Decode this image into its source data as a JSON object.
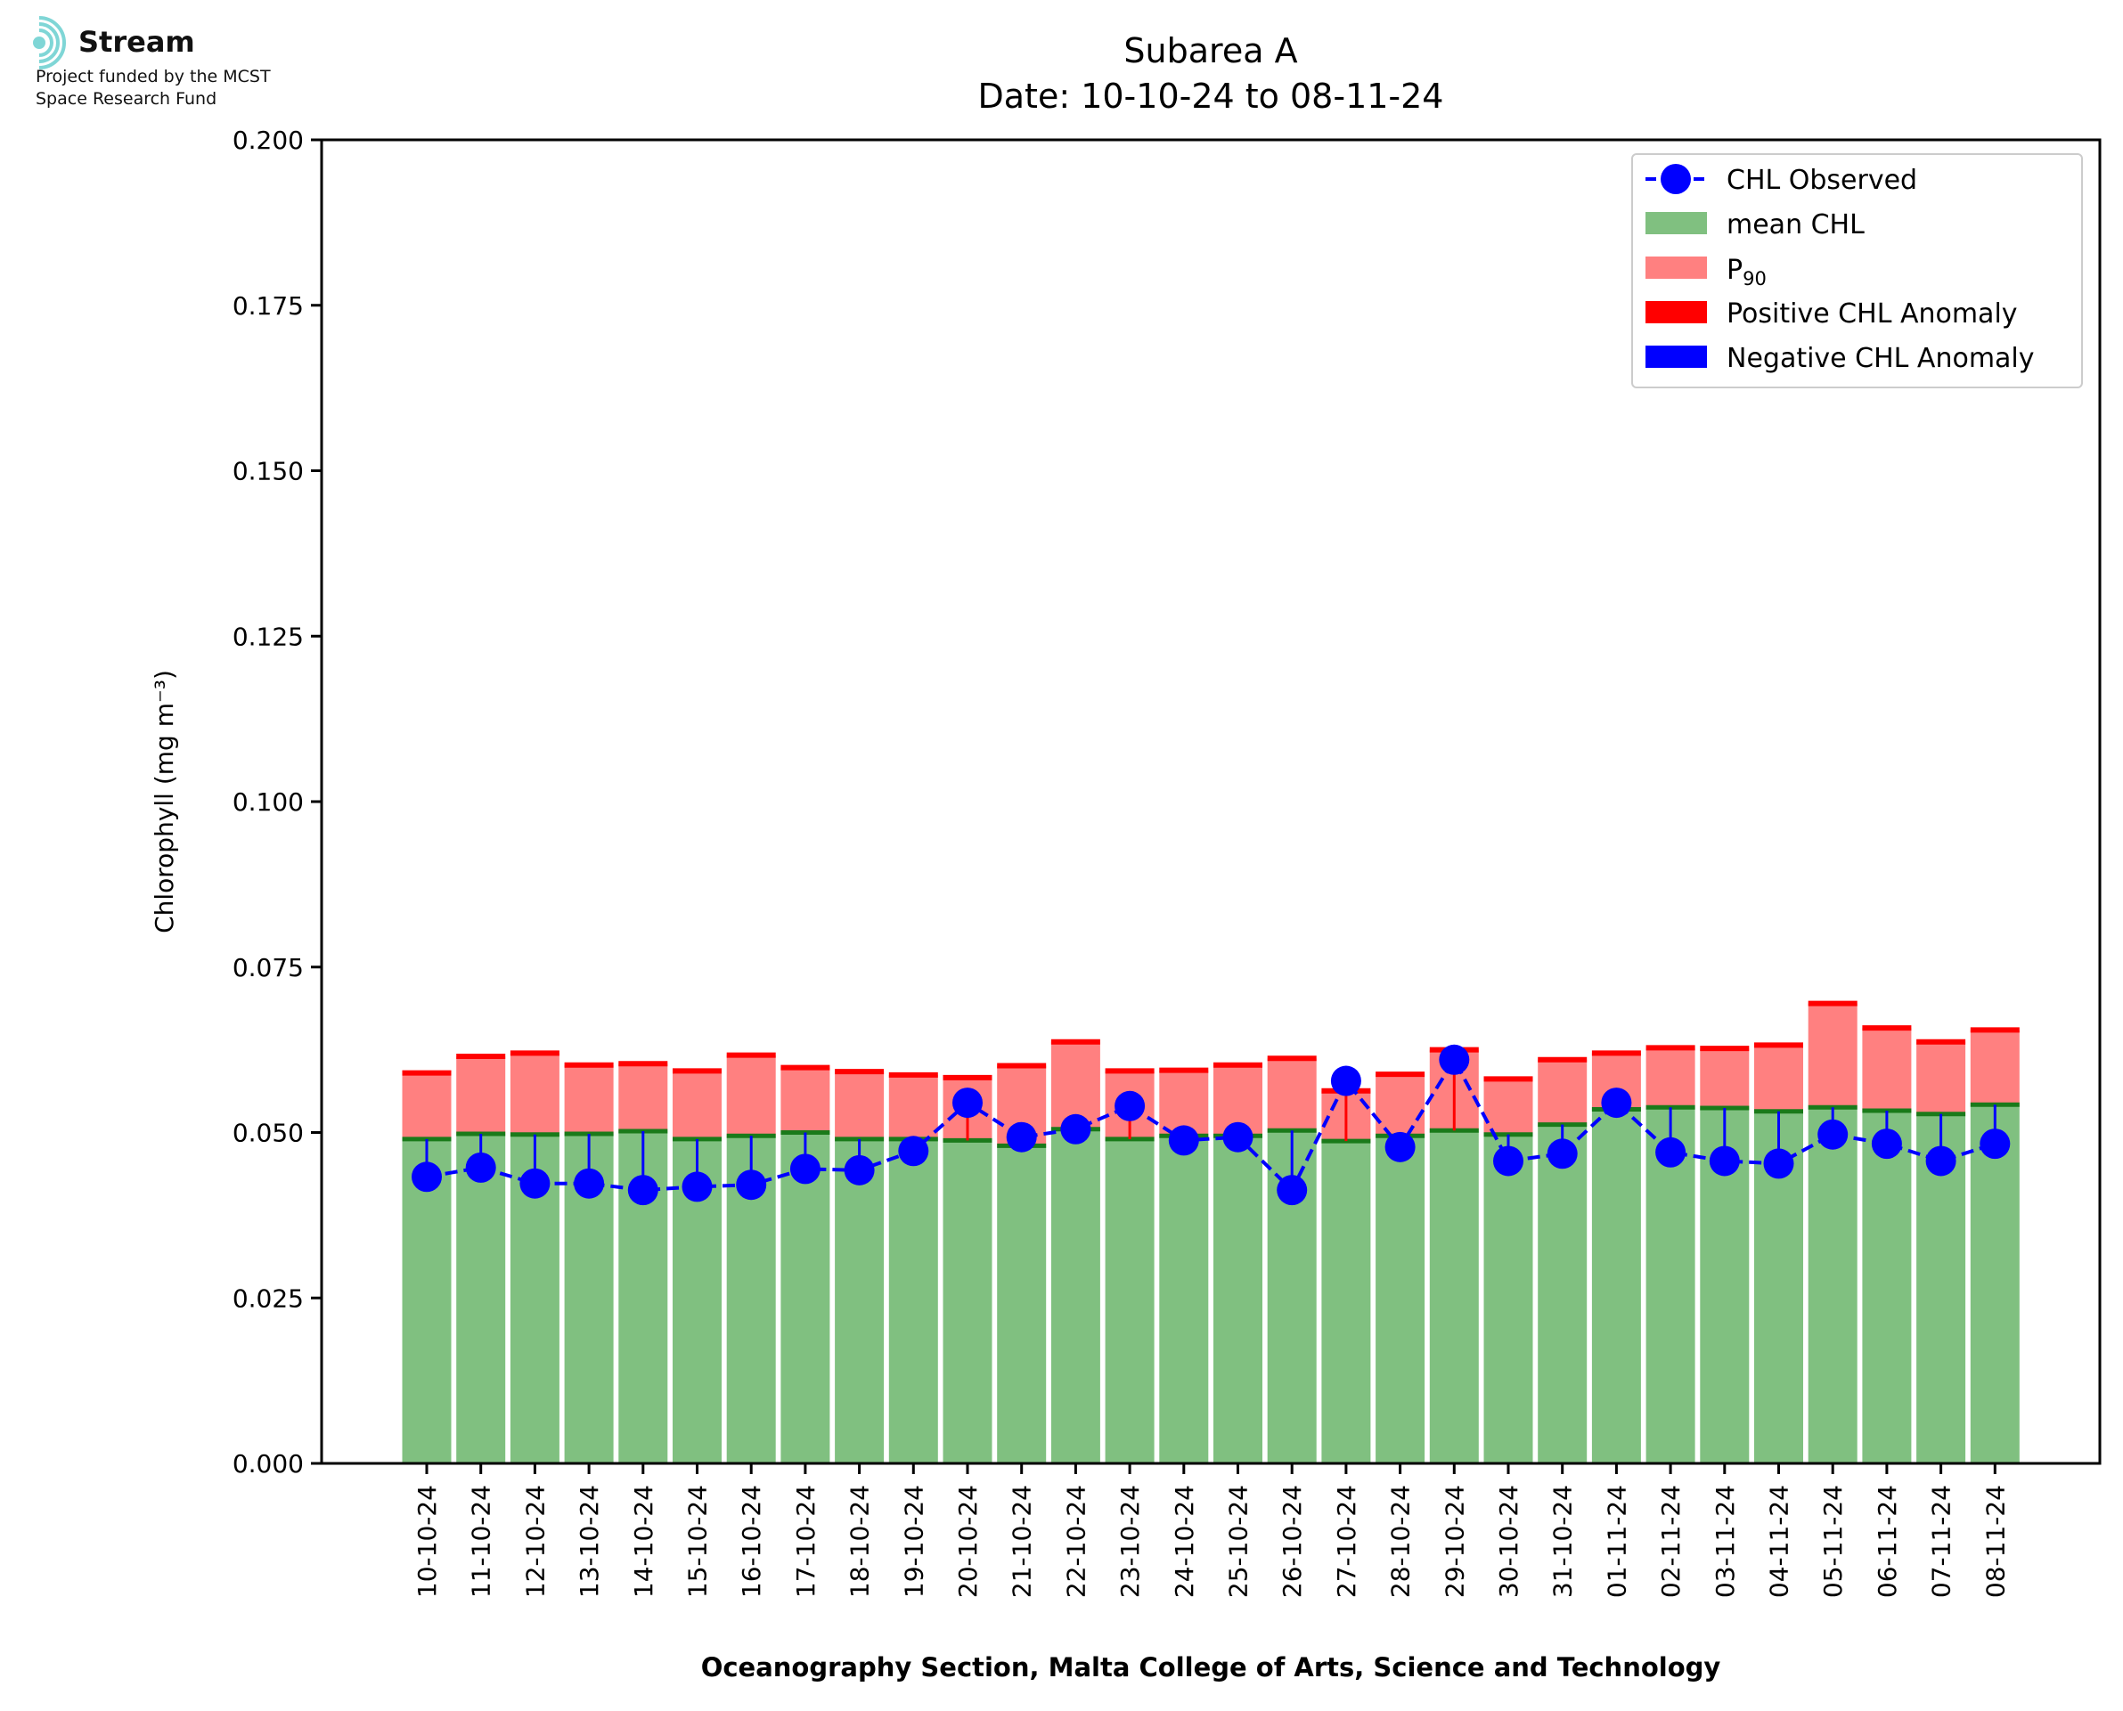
{
  "logo": {
    "name": "Stream",
    "line1": "Project funded by the MCST",
    "line2": "Space Research Fund"
  },
  "colors": {
    "mean": "#80c080",
    "mean_line": "#1a7a1a",
    "p90": "#ff8080",
    "p90_line": "#ff0000",
    "pos_anom": "#ff0000",
    "neg_anom": "#0000ff",
    "observed": "#0000ff",
    "logo": "#7fd6d6"
  },
  "chart_data": {
    "type": "bar",
    "title": "Subarea A",
    "subtitle": "Date: 10-10-24 to 08-11-24",
    "xlabel": "Oceanography Section, Malta College of Arts, Science and Technology",
    "ylabel": "Chlorophyll (mg m⁻³)",
    "ylim": [
      0,
      0.2
    ],
    "yticks": [
      "0.000",
      "0.025",
      "0.050",
      "0.075",
      "0.100",
      "0.125",
      "0.150",
      "0.175",
      "0.200"
    ],
    "categories": [
      "10-10-24",
      "11-10-24",
      "12-10-24",
      "13-10-24",
      "14-10-24",
      "15-10-24",
      "16-10-24",
      "17-10-24",
      "18-10-24",
      "19-10-24",
      "20-10-24",
      "21-10-24",
      "22-10-24",
      "23-10-24",
      "24-10-24",
      "25-10-24",
      "26-10-24",
      "27-10-24",
      "28-10-24",
      "29-10-24",
      "30-10-24",
      "31-10-24",
      "01-11-24",
      "02-11-24",
      "03-11-24",
      "04-11-24",
      "05-11-24",
      "06-11-24",
      "07-11-24",
      "08-11-24"
    ],
    "series": [
      {
        "name": "mean CHL",
        "values": [
          0.049,
          0.0498,
          0.0497,
          0.0498,
          0.0502,
          0.049,
          0.0495,
          0.05,
          0.049,
          0.049,
          0.0488,
          0.048,
          0.0505,
          0.049,
          0.0495,
          0.0495,
          0.0503,
          0.0487,
          0.0495,
          0.0503,
          0.0497,
          0.0512,
          0.0535,
          0.0538,
          0.0537,
          0.0532,
          0.0538,
          0.0533,
          0.0528,
          0.0542
        ]
      },
      {
        "name": "P90",
        "values": [
          0.059,
          0.0615,
          0.062,
          0.0602,
          0.0604,
          0.0593,
          0.0617,
          0.0598,
          0.0592,
          0.0587,
          0.0583,
          0.0601,
          0.0637,
          0.0593,
          0.0594,
          0.0602,
          0.0612,
          0.0563,
          0.0588,
          0.0625,
          0.0581,
          0.061,
          0.062,
          0.0628,
          0.0627,
          0.0632,
          0.0695,
          0.0658,
          0.0637,
          0.0655
        ]
      },
      {
        "name": "CHL Observed",
        "values": [
          0.0433,
          0.0447,
          0.0423,
          0.0423,
          0.0413,
          0.0418,
          0.0421,
          0.0445,
          0.0443,
          0.0472,
          0.0545,
          0.0493,
          0.0505,
          0.054,
          0.0488,
          0.0493,
          0.0413,
          0.0578,
          0.0478,
          0.061,
          0.0457,
          0.0468,
          0.0545,
          0.047,
          0.0457,
          0.0453,
          0.0497,
          0.0483,
          0.0457,
          0.0483
        ]
      }
    ],
    "legend": {
      "position": "top-right",
      "entries": [
        "CHL Observed",
        "mean CHL",
        "P",
        "Positive CHL Anomaly",
        "Negative CHL Anomaly"
      ],
      "p90_subscript": "90"
    }
  }
}
